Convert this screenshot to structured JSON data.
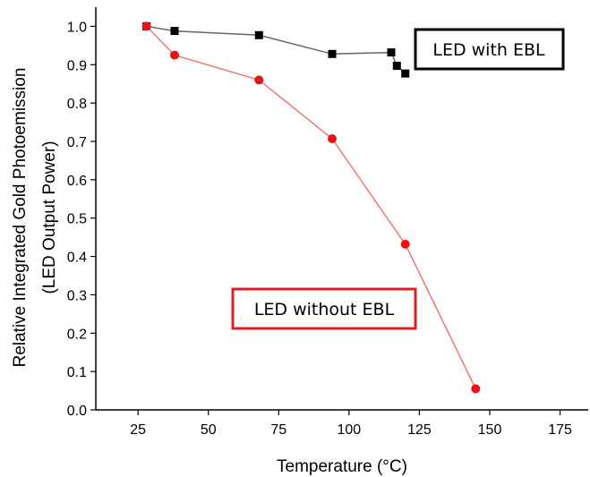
{
  "chart_data": {
    "type": "line",
    "xlabel": "Temperature (°C)",
    "ylabel_line1": "Relative Integrated Gold Photoemission",
    "ylabel_line2": "(LED Output Power)",
    "xlim": [
      10,
      185
    ],
    "ylim": [
      0.0,
      1.05
    ],
    "xticks": [
      25,
      50,
      75,
      100,
      125,
      150,
      175
    ],
    "xtick_labels": [
      "25",
      "50",
      "75",
      "100",
      "125",
      "150",
      "175"
    ],
    "yticks": [
      0.0,
      0.1,
      0.2,
      0.3,
      0.4,
      0.5,
      0.6,
      0.7,
      0.8,
      0.9,
      1.0
    ],
    "ytick_labels": [
      "0.0",
      "0.1",
      "0.2",
      "0.3",
      "0.4",
      "0.5",
      "0.6",
      "0.7",
      "0.8",
      "0.9",
      "1.0"
    ],
    "grid": false,
    "series": [
      {
        "name": "LED with EBL",
        "color": "#000000",
        "line_color": "#666666",
        "marker": "square",
        "x": [
          28,
          38,
          68,
          94,
          115,
          117,
          120
        ],
        "y": [
          1.0,
          0.988,
          0.977,
          0.928,
          0.932,
          0.897,
          0.877
        ]
      },
      {
        "name": "LED without EBL",
        "color": "#ee1111",
        "line_color": "#ee7777",
        "marker": "circle",
        "x": [
          28,
          38,
          68,
          94,
          120,
          145
        ],
        "y": [
          1.0,
          0.925,
          0.86,
          0.707,
          0.432,
          0.055
        ]
      }
    ],
    "annotations": [
      {
        "text": "LED with EBL",
        "border_color": "#000000"
      },
      {
        "text": "LED without EBL",
        "border_color": "#e02020"
      }
    ]
  }
}
